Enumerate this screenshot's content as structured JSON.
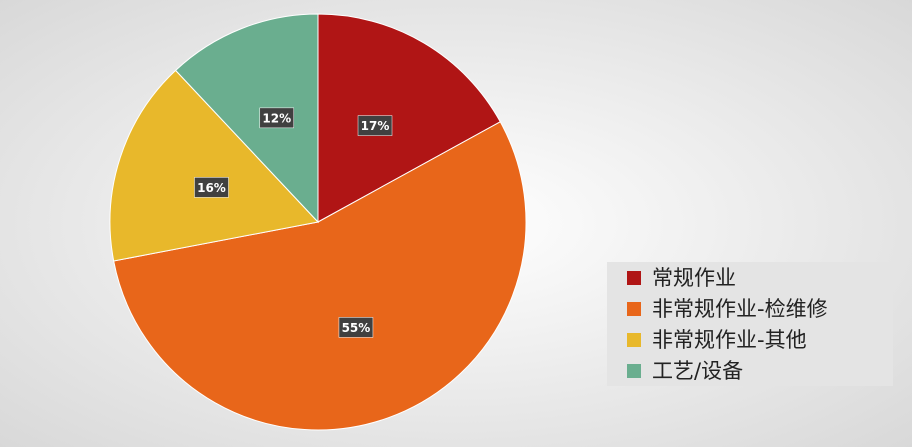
{
  "chart_data": {
    "type": "pie",
    "categories": [
      "常规作业",
      "非常规作业-检维修",
      "非常规作业-其他",
      "工艺/设备"
    ],
    "values": [
      17,
      55,
      16,
      12
    ],
    "value_labels": [
      "17%",
      "55%",
      "16%",
      "12%"
    ],
    "colors": [
      "#b01515",
      "#e8661a",
      "#e8b82b",
      "#6aae8f"
    ],
    "legend": "right"
  }
}
